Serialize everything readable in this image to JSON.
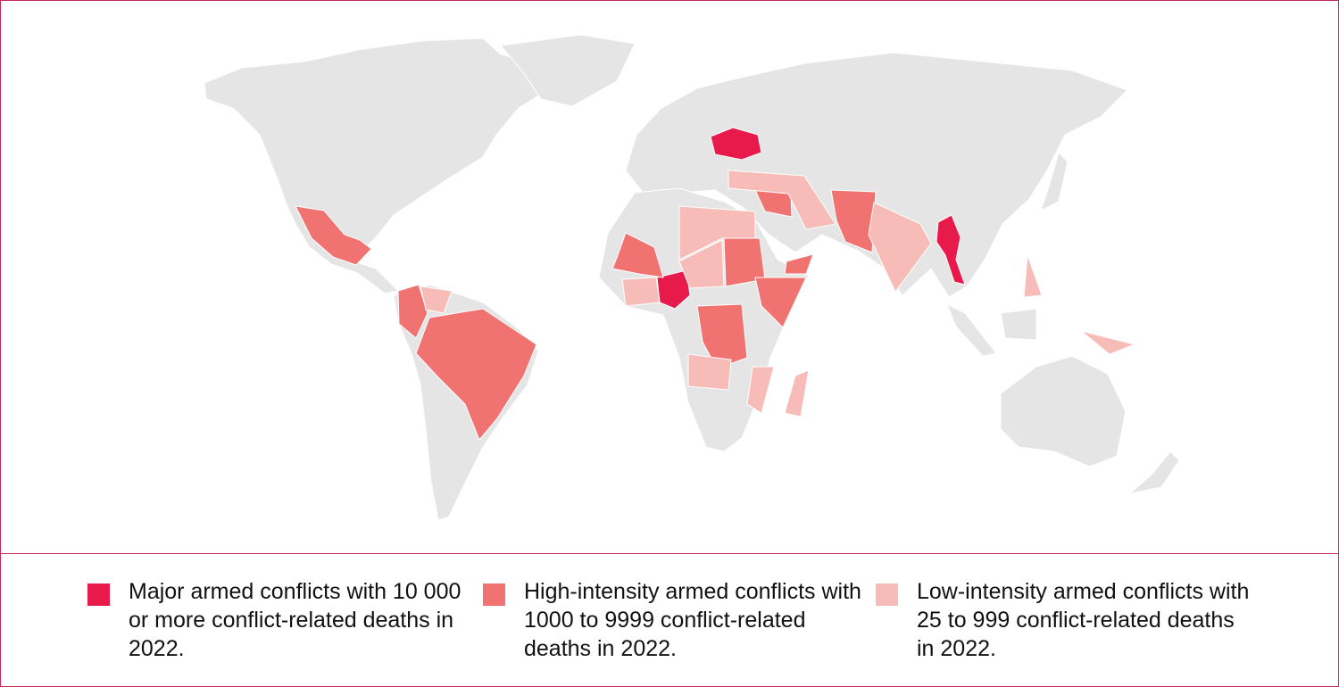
{
  "legend": {
    "items": [
      {
        "label": "Major armed conflicts with 10 000 or more conflict-related deaths in 2022.",
        "color": "#e8194b"
      },
      {
        "label": "High-intensity armed conflicts with 1000 to 9999 conflict-related deaths in 2022.",
        "color": "#f07372"
      },
      {
        "label": "Low-intensity armed conflicts with 25 to 999 conflict-related deaths in 2022.",
        "color": "#f8bcb8"
      }
    ]
  }
}
